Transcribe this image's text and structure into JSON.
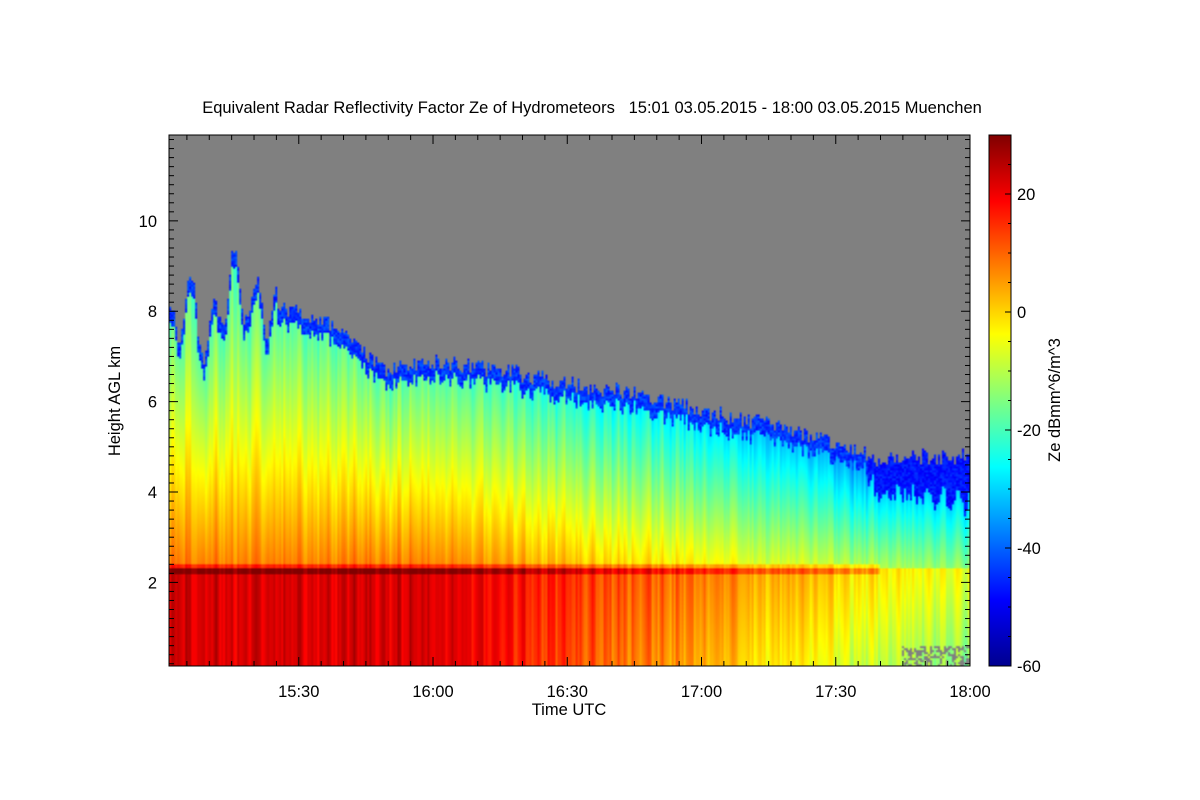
{
  "chart_data": {
    "type": "heatmap",
    "title": "Equivalent Radar Reflectivity Factor Ze of Hydrometeors   15:01 03.05.2015 - 18:00 03.05.2015 Muenchen",
    "xlabel": "Time UTC",
    "ylabel": "Height AGL km",
    "colorbar_label": "Ze dBmm^6/m^3",
    "x_range_minutes_after_15_00": [
      1,
      180
    ],
    "xlim": [
      "15:01",
      "18:00"
    ],
    "x_ticks": [
      {
        "label": "15:30",
        "minute": 30
      },
      {
        "label": "16:00",
        "minute": 60
      },
      {
        "label": "16:30",
        "minute": 90
      },
      {
        "label": "17:00",
        "minute": 120
      },
      {
        "label": "17:30",
        "minute": 150
      },
      {
        "label": "18:00",
        "minute": 180
      }
    ],
    "ylim": [
      0.15,
      11.9
    ],
    "y_ticks": [
      2,
      4,
      6,
      8,
      10
    ],
    "colorbar_range": [
      -60,
      30
    ],
    "colorbar_ticks": [
      20,
      0,
      -20,
      -40,
      -60
    ],
    "colormap": "jet",
    "missing_color": "#808080",
    "cloud_top_km": [
      {
        "time": "15:01",
        "top": 7.4
      },
      {
        "time": "15:05",
        "top": 8.4
      },
      {
        "time": "15:10",
        "top": 7.2
      },
      {
        "time": "15:15",
        "top": 8.8
      },
      {
        "time": "15:20",
        "top": 8.1
      },
      {
        "time": "15:30",
        "top": 8.0
      },
      {
        "time": "15:40",
        "top": 7.6
      },
      {
        "time": "15:45",
        "top": 7.0
      },
      {
        "time": "15:50",
        "top": 6.7
      },
      {
        "time": "16:00",
        "top": 6.9
      },
      {
        "time": "16:15",
        "top": 6.7
      },
      {
        "time": "16:30",
        "top": 6.4
      },
      {
        "time": "16:45",
        "top": 6.2
      },
      {
        "time": "17:00",
        "top": 5.8
      },
      {
        "time": "17:15",
        "top": 5.5
      },
      {
        "time": "17:30",
        "top": 5.1
      },
      {
        "time": "17:40",
        "top": 4.7
      },
      {
        "time": "17:50",
        "top": 4.8
      },
      {
        "time": "18:00",
        "top": 4.8
      }
    ],
    "melting_layer_height_km": 2.3,
    "legend": "colorbar-right",
    "grid": false
  }
}
